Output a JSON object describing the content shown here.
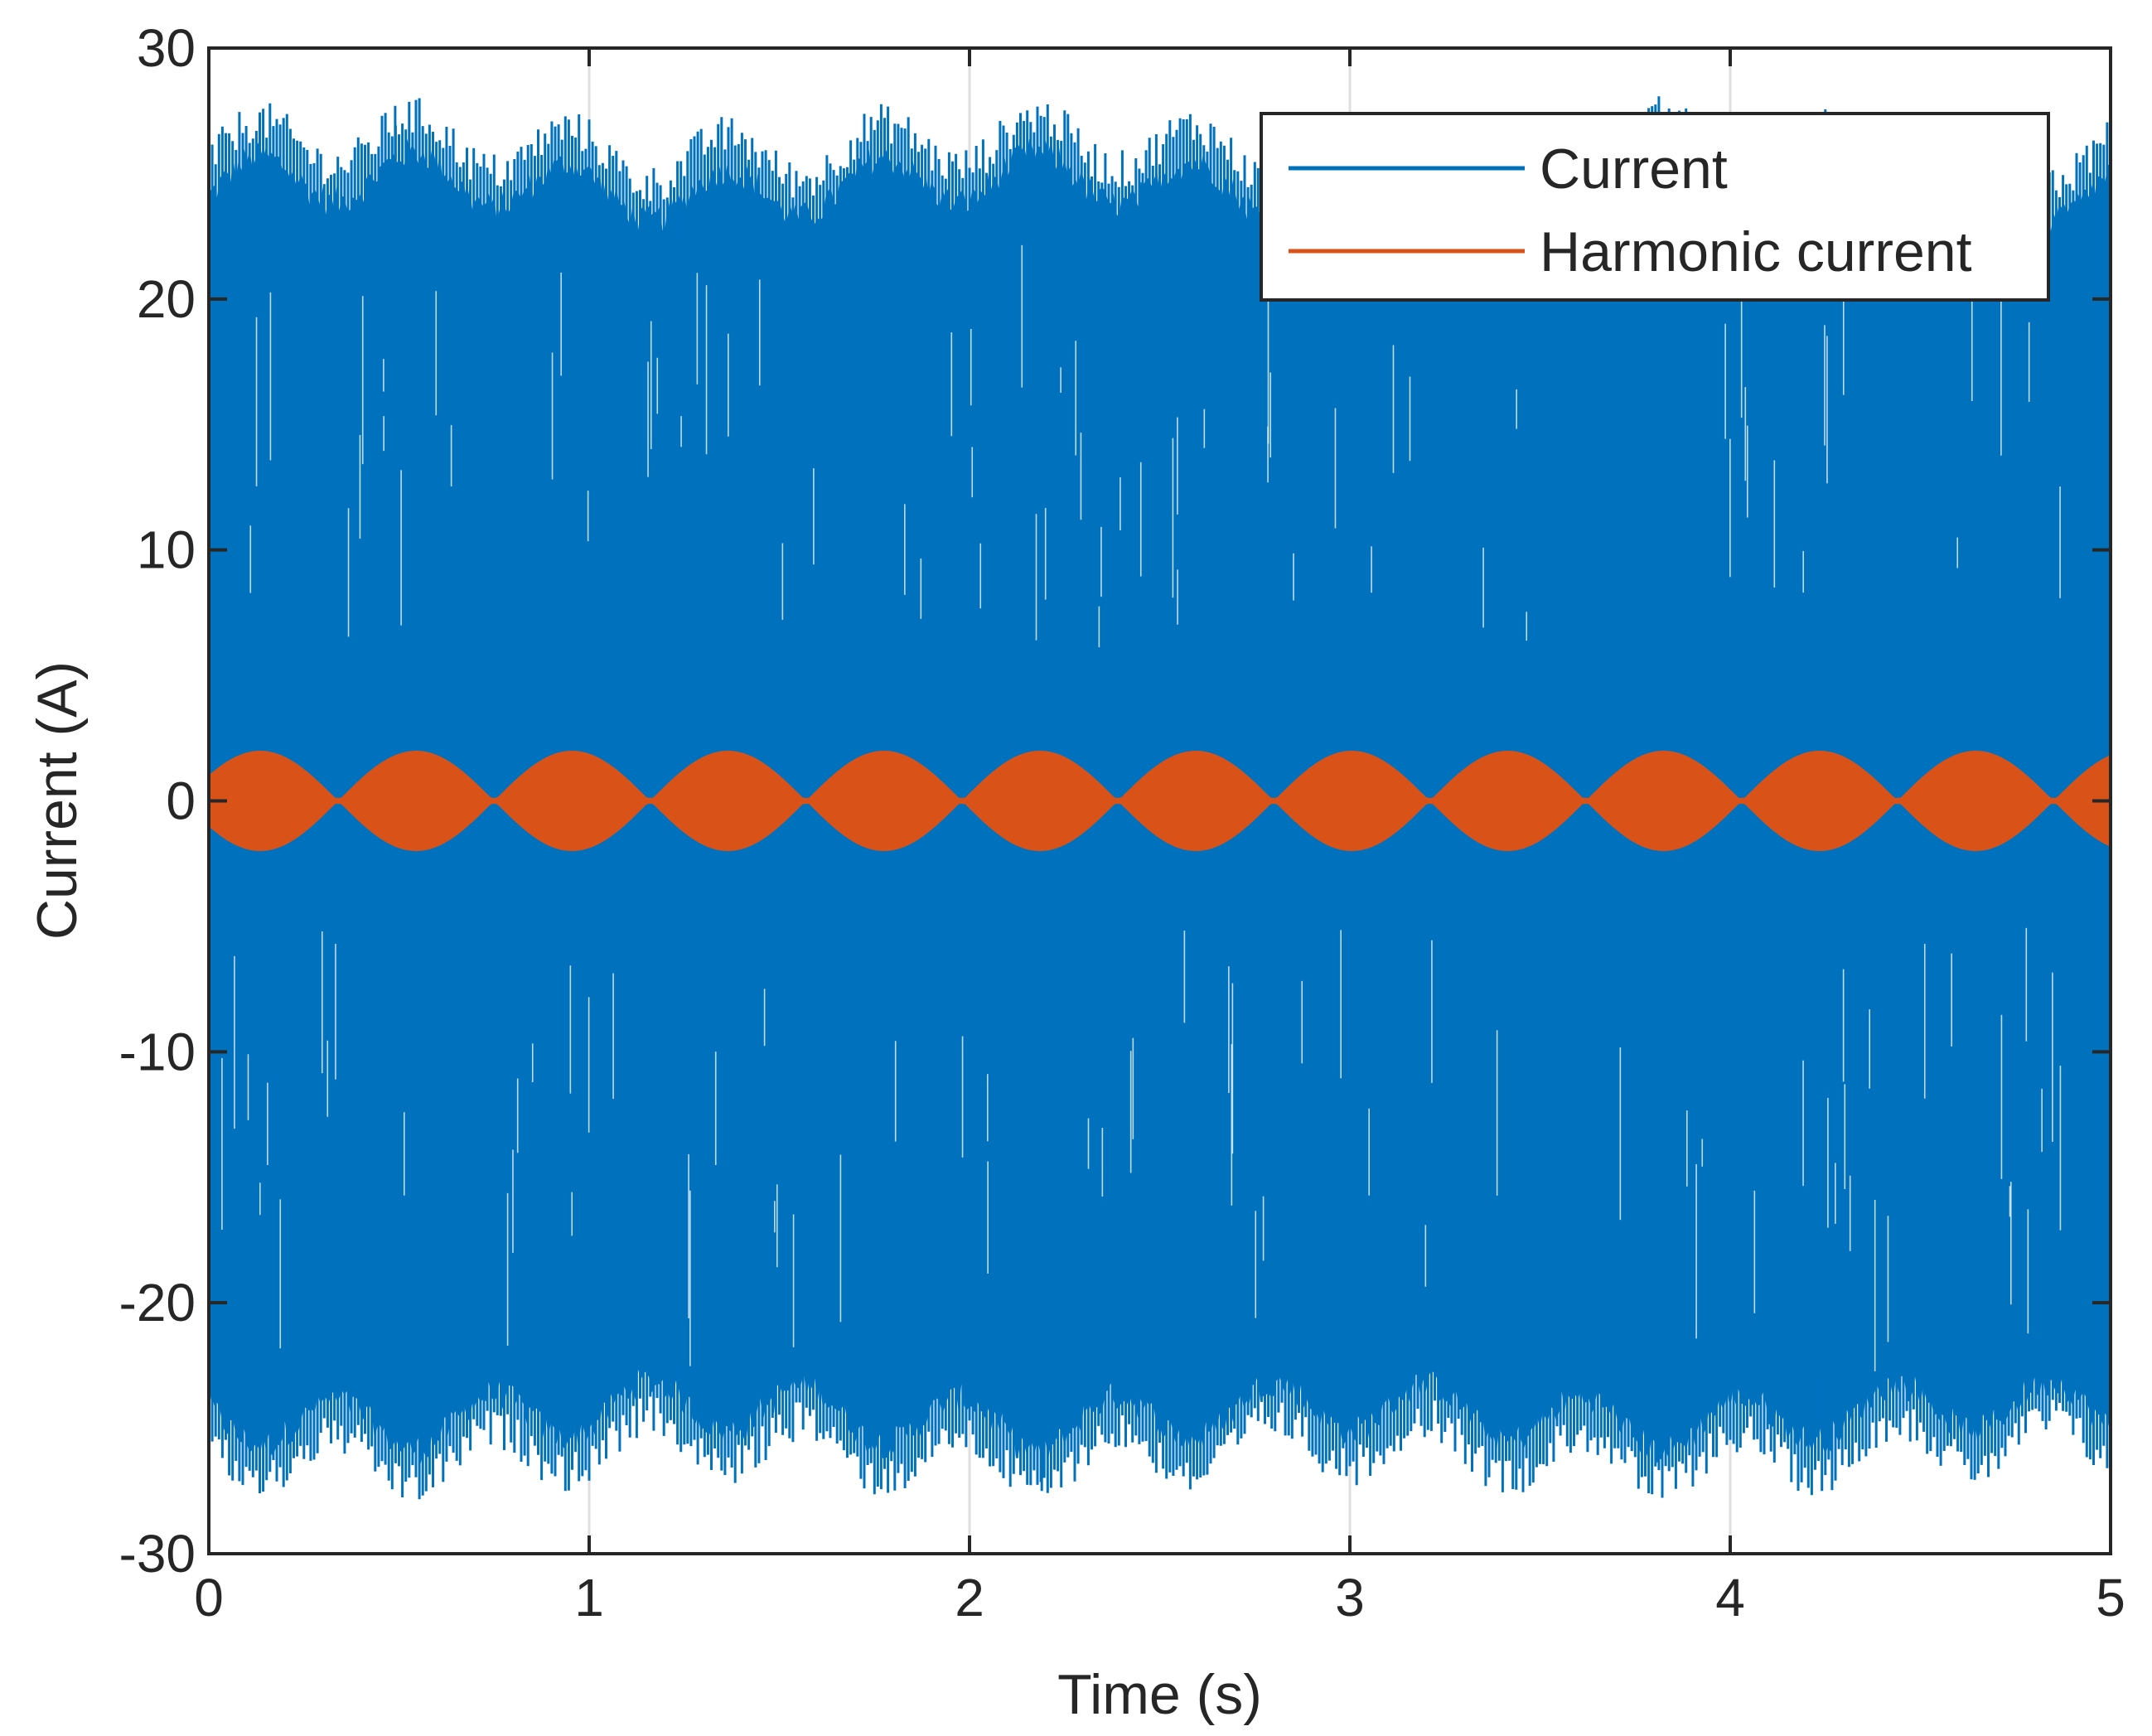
{
  "chart_data": {
    "type": "line",
    "title": "",
    "xlabel": "Time (s)",
    "ylabel": "Current (A)",
    "xlim": [
      0,
      5
    ],
    "ylim": [
      -30,
      30
    ],
    "xticks": [
      0,
      1,
      2,
      3,
      4,
      5
    ],
    "xtick_labels": [
      "0",
      "1",
      "2",
      "3",
      "4",
      "5"
    ],
    "yticks": [
      -30,
      -20,
      -10,
      0,
      10,
      20,
      30
    ],
    "ytick_labels": [
      "-30",
      "-20",
      "-10",
      "0",
      "10",
      "20",
      "30"
    ],
    "grid": "x-only",
    "legend_position": "top-right",
    "colors": {
      "current": "#0072BD",
      "harmonic": "#D95319",
      "axes": "#262626",
      "grid": "#dfdfdf"
    },
    "series": [
      {
        "name": "Current",
        "color": "#0072BD",
        "description": "Dense oscillating current, peak amplitude about 24-27 A with slow envelope ripple",
        "base_amplitude_A": 24.5,
        "envelope_ripple_A": 1.0,
        "envelope_period_s": 0.41,
        "peak_max_A": 27.7,
        "peak_min_A": -27.5
      },
      {
        "name": "Harmonic current",
        "color": "#D95319",
        "description": "Amplitude-modulated harmonic current with envelope lobes reaching about ±2 A",
        "envelope_amplitude_A": 2.0,
        "envelope_lobe_period_s": 0.41,
        "lobe_peaks_s": [
          0.13,
          0.55,
          0.95,
          1.35,
          1.76,
          2.17,
          2.58,
          2.99,
          3.4,
          3.81,
          4.22,
          4.63
        ],
        "lobe_nodes_s": [
          0.34,
          0.75,
          1.16,
          1.57,
          1.98,
          2.39,
          2.8,
          3.21,
          3.62,
          4.03,
          4.44,
          4.85
        ]
      }
    ]
  }
}
